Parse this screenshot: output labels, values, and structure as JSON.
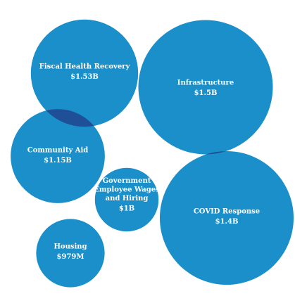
{
  "chart_data": {
    "type": "bubble",
    "unit": "USD",
    "colors": {
      "bubble": "#1a8fc9",
      "overlap": "#1f4f96",
      "text": "#ffffff",
      "background": "#ffffff"
    },
    "items": [
      {
        "category": "Fiscal Health Recovery",
        "label_lines": [
          "Fiscal Health Recovery"
        ],
        "value_label": "$1.53B",
        "value": 1.53
      },
      {
        "category": "Infrastructure",
        "label_lines": [
          "Infrastructure"
        ],
        "value_label": "$1.5B",
        "value": 1.5
      },
      {
        "category": "Community Aid",
        "label_lines": [
          "Community Aid"
        ],
        "value_label": "$1.15B",
        "value": 1.15
      },
      {
        "category": "Government Employee Wages and Hiring",
        "label_lines": [
          "Government",
          "Employee Wages",
          "and Hiring"
        ],
        "value_label": "$1B",
        "value": 1.0
      },
      {
        "category": "COVID Response",
        "label_lines": [
          "COVID Response"
        ],
        "value_label": "$1.4B",
        "value": 1.4
      },
      {
        "category": "Housing",
        "label_lines": [
          "Housing"
        ],
        "value_label": "$979M",
        "value": 0.979
      }
    ]
  }
}
